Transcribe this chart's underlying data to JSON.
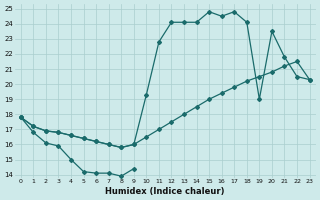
{
  "xlabel": "Humidex (Indice chaleur)",
  "bg_color": "#ceeaea",
  "grid_color": "#aacece",
  "line_color": "#1a6b6b",
  "xlim": [
    -0.5,
    23.5
  ],
  "ylim": [
    13.8,
    25.3
  ],
  "xticks": [
    0,
    1,
    2,
    3,
    4,
    5,
    6,
    7,
    8,
    9,
    10,
    11,
    12,
    13,
    14,
    15,
    16,
    17,
    18,
    19,
    20,
    21,
    22,
    23
  ],
  "yticks": [
    14,
    15,
    16,
    17,
    18,
    19,
    20,
    21,
    22,
    23,
    24,
    25
  ],
  "line1_x": [
    0,
    1,
    2,
    3,
    4,
    5,
    6,
    7,
    8,
    9
  ],
  "line1_y": [
    17.8,
    16.8,
    16.1,
    15.9,
    15.0,
    14.2,
    14.1,
    14.1,
    13.9,
    14.4
  ],
  "line2_x": [
    0,
    1,
    2,
    3,
    4,
    5,
    6,
    7,
    8,
    9,
    10,
    11,
    12,
    13,
    14,
    15,
    16,
    17,
    18,
    19,
    20,
    21,
    22,
    23
  ],
  "line2_y": [
    17.8,
    17.2,
    16.9,
    16.8,
    16.6,
    16.4,
    16.2,
    16.0,
    15.8,
    16.0,
    16.5,
    17.0,
    17.5,
    18.0,
    18.5,
    19.0,
    19.4,
    19.8,
    20.2,
    20.5,
    20.8,
    21.2,
    21.5,
    20.3
  ],
  "line3_x": [
    0,
    1,
    2,
    3,
    4,
    5,
    6,
    7,
    8,
    9,
    10,
    11,
    12,
    13,
    14,
    15,
    16,
    17,
    18,
    19,
    20,
    21,
    22,
    23
  ],
  "line3_y": [
    17.8,
    17.2,
    16.9,
    16.8,
    16.6,
    16.4,
    16.2,
    16.0,
    15.8,
    16.0,
    19.3,
    22.8,
    24.1,
    24.1,
    24.1,
    24.8,
    24.5,
    24.8,
    24.1,
    19.0,
    23.5,
    21.8,
    20.5,
    20.3
  ]
}
